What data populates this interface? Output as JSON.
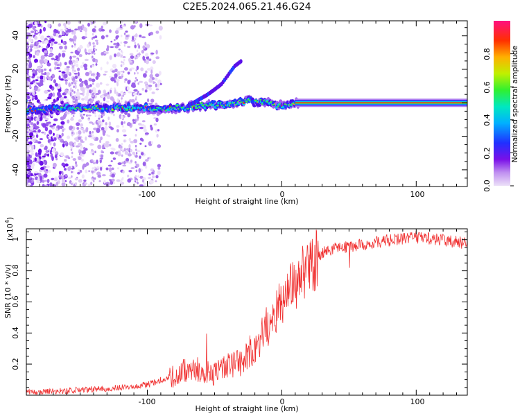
{
  "figure_title": "C2E5.2024.065.21.46.G24",
  "chart_data": [
    {
      "type": "heatmap",
      "name": "spectrogram",
      "xlabel": "Height of straight line (km)",
      "ylabel": "Frequency (Hz)",
      "xlim": [
        -190,
        138
      ],
      "ylim": [
        -50,
        49
      ],
      "xticks": [
        -100,
        0,
        100
      ],
      "yticks": [
        -40,
        -20,
        0,
        20,
        40
      ],
      "colorbar": {
        "label": "Normalized spectral amplitude",
        "range": [
          0,
          1
        ],
        "ticks": [
          0.0,
          0.2,
          0.4,
          0.6,
          0.8
        ],
        "colormap": [
          "#e8d8f8",
          "#b070f0",
          "#6a00e8",
          "#2030ff",
          "#00b8ff",
          "#00e8c0",
          "#30f030",
          "#c0f000",
          "#ffb000",
          "#ff3000",
          "#ff1080"
        ]
      },
      "ridge_frequency_hz": [
        {
          "x": -190,
          "y": -4
        },
        {
          "x": -160,
          "y": -3
        },
        {
          "x": -130,
          "y": -3
        },
        {
          "x": -100,
          "y": -3
        },
        {
          "x": -80,
          "y": -3
        },
        {
          "x": -60,
          "y": -2
        },
        {
          "x": -40,
          "y": -1
        },
        {
          "x": -25,
          "y": 1
        },
        {
          "x": -10,
          "y": 0
        },
        {
          "x": 0,
          "y": -2
        },
        {
          "x": 10,
          "y": 0
        },
        {
          "x": 138,
          "y": 0
        }
      ],
      "branch_frequency_hz": [
        {
          "x": -70,
          "y": -2
        },
        {
          "x": -55,
          "y": 5
        },
        {
          "x": -45,
          "y": 11
        },
        {
          "x": -35,
          "y": 22
        },
        {
          "x": -30,
          "y": 25
        }
      ]
    },
    {
      "type": "line",
      "name": "snr",
      "xlabel": "Height of straight line (km)",
      "ylabel": "SNR (10 * v/v)",
      "y_scale_label": "(x10",
      "y_scale_exponent": "4",
      "xlim": [
        -190,
        138
      ],
      "ylim": [
        0,
        1.07
      ],
      "xticks": [
        -100,
        0,
        100
      ],
      "yticks": [
        0.2,
        0.4,
        0.6,
        0.8,
        1.0
      ],
      "line_color": "#f03030",
      "series": [
        {
          "name": "SNR",
          "x": [
            -190,
            -160,
            -140,
            -120,
            -100,
            -80,
            -70,
            -60,
            -50,
            -40,
            -30,
            -20,
            -10,
            0,
            10,
            20,
            30,
            40,
            50,
            60,
            70,
            80,
            90,
            100,
            110,
            120,
            130,
            138
          ],
          "values": [
            0.02,
            0.03,
            0.04,
            0.05,
            0.07,
            0.13,
            0.18,
            0.17,
            0.14,
            0.2,
            0.22,
            0.3,
            0.45,
            0.62,
            0.75,
            0.85,
            0.92,
            0.95,
            0.96,
            0.97,
            0.99,
            1.0,
            1.01,
            1.02,
            1.01,
            1.0,
            0.99,
            0.98
          ]
        }
      ]
    }
  ]
}
